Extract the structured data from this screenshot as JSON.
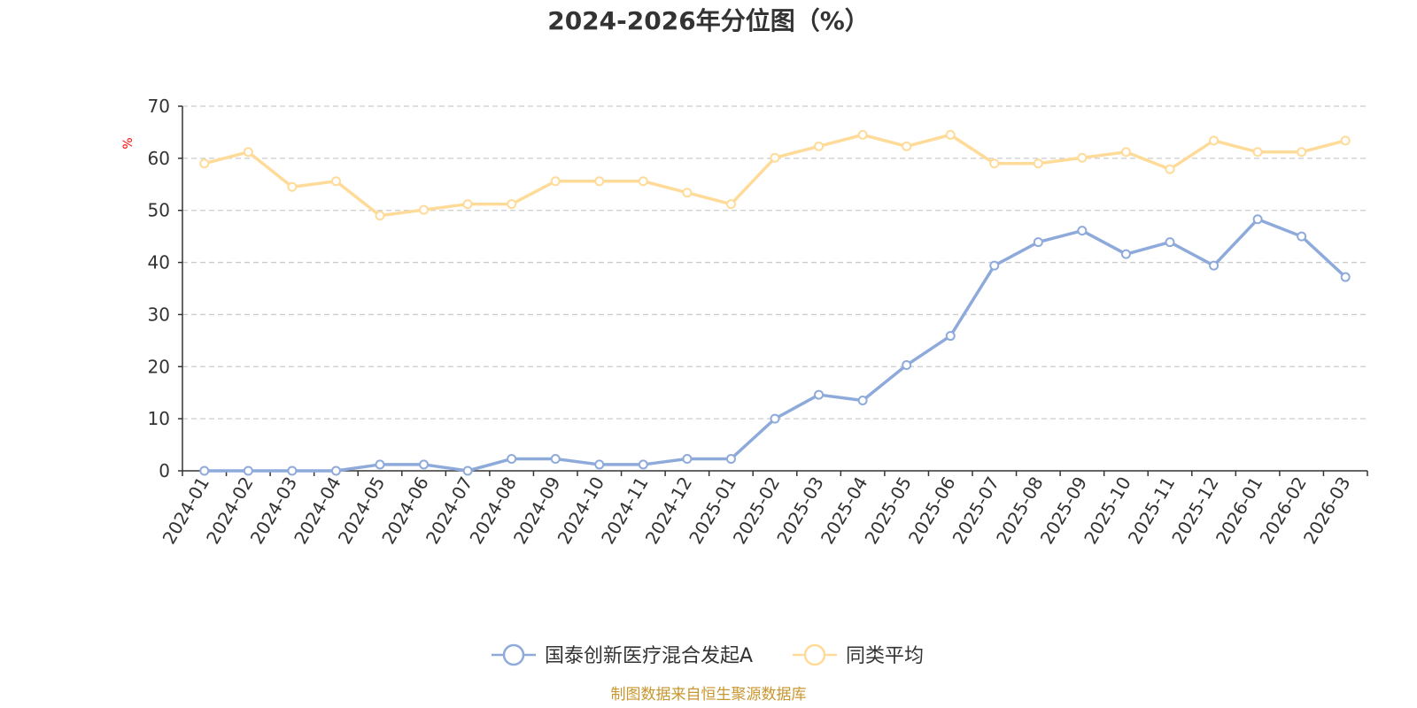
{
  "chart_data": {
    "type": "line",
    "title": "2024-2026年分位图（%）",
    "ylabel": "%",
    "ylim": [
      0,
      70
    ],
    "yticks": [
      0,
      10,
      20,
      30,
      40,
      50,
      60,
      70
    ],
    "grid": true,
    "legend_placement": "bottom-center",
    "categories": [
      "2024-01",
      "2024-02",
      "2024-03",
      "2024-04",
      "2024-05",
      "2024-06",
      "2024-07",
      "2024-08",
      "2024-09",
      "2024-10",
      "2024-11",
      "2024-12",
      "2025-01",
      "2025-02",
      "2025-03",
      "2025-04",
      "2025-05",
      "2025-06",
      "2025-07",
      "2025-08",
      "2025-09",
      "2025-10",
      "2025-11",
      "2025-12",
      "2026-01",
      "2026-02",
      "2026-03"
    ],
    "series": [
      {
        "name": "国泰创新医疗混合发起A",
        "color": "#8eaadb",
        "values": [
          0,
          0,
          0,
          0,
          1.2,
          1.2,
          0,
          2.3,
          2.3,
          1.2,
          1.2,
          2.3,
          2.3,
          10,
          14.6,
          13.5,
          20.3,
          25.9,
          39.4,
          43.9,
          46.1,
          41.6,
          43.9,
          39.4,
          48.3,
          45,
          37.2
        ]
      },
      {
        "name": "同类平均",
        "color": "#ffdb99",
        "values": [
          59,
          61.2,
          54.5,
          55.6,
          49,
          50.1,
          51.2,
          51.2,
          55.6,
          55.6,
          55.6,
          53.4,
          51.2,
          60.1,
          62.3,
          64.5,
          62.3,
          64.5,
          59,
          59,
          60.1,
          61.2,
          57.9,
          63.4,
          61.2,
          61.2,
          63.4
        ]
      }
    ],
    "source": "制图数据来自恒生聚源数据库"
  }
}
